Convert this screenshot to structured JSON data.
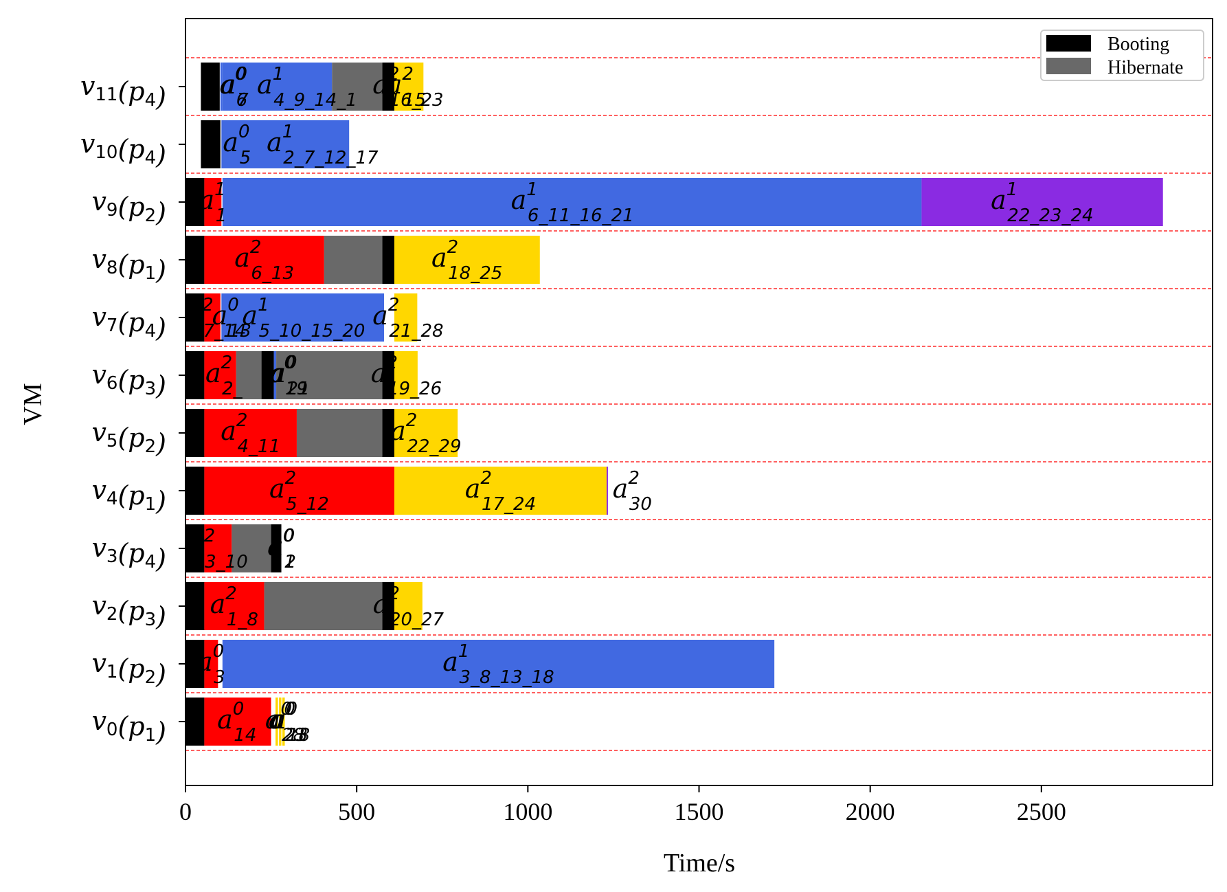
{
  "chart_data": {
    "type": "gantt",
    "xlabel": "Time/s",
    "ylabel": "VM",
    "xlim": [
      0,
      3000
    ],
    "xticks": [
      0,
      500,
      1000,
      1500,
      2000,
      2500
    ],
    "legend": {
      "placement": "top-right",
      "entries": [
        {
          "label": "Booting",
          "color": "#000000"
        },
        {
          "label": "Hibernate",
          "color": "#696969"
        }
      ]
    },
    "colors": {
      "booting": "#000000",
      "hibernate": "#696969",
      "red": "#ff0000",
      "blue": "#4169e1",
      "yellow": "#ffd700",
      "purple": "#8a2be2",
      "separator": "#ff0000"
    },
    "vms": [
      {
        "name": "v",
        "sub": "0",
        "p": "p",
        "psub": "1",
        "segments": [
          {
            "start": 0,
            "end": 55,
            "kind": "booting"
          },
          {
            "start": 55,
            "end": 250,
            "kind": "red"
          },
          {
            "start": 263,
            "end": 270,
            "kind": "yellow"
          },
          {
            "start": 273,
            "end": 280,
            "kind": "yellow"
          },
          {
            "start": 283,
            "end": 290,
            "kind": "yellow"
          }
        ],
        "labels": [
          {
            "x": 150,
            "sup": "0",
            "sub": "14"
          },
          {
            "x": 290,
            "sup": "0",
            "sub": "28"
          },
          {
            "x": 300,
            "sup": "0",
            "sub": "23"
          },
          {
            "x": 306,
            "sup": "0",
            "sub": "18"
          }
        ]
      },
      {
        "name": "v",
        "sub": "1",
        "p": "p",
        "psub": "2",
        "segments": [
          {
            "start": 0,
            "end": 55,
            "kind": "booting"
          },
          {
            "start": 55,
            "end": 95,
            "kind": "red"
          },
          {
            "start": 108,
            "end": 1720,
            "kind": "blue"
          }
        ],
        "labels": [
          {
            "x": 75,
            "sup": "0",
            "sub": "3"
          },
          {
            "x": 914,
            "sup": "1",
            "sub": "3_8_13_18"
          }
        ]
      },
      {
        "name": "v",
        "sub": "2",
        "p": "p",
        "psub": "3",
        "segments": [
          {
            "start": 0,
            "end": 55,
            "kind": "booting"
          },
          {
            "start": 55,
            "end": 230,
            "kind": "red"
          },
          {
            "start": 230,
            "end": 575,
            "kind": "hibernate"
          },
          {
            "start": 575,
            "end": 610,
            "kind": "booting"
          },
          {
            "start": 610,
            "end": 692,
            "kind": "yellow"
          }
        ],
        "labels": [
          {
            "x": 142,
            "sup": "2",
            "sub": "1_8"
          },
          {
            "x": 651,
            "sup": "2",
            "sub": "20_27"
          }
        ]
      },
      {
        "name": "v",
        "sub": "3",
        "p": "p",
        "psub": "4",
        "segments": [
          {
            "start": 0,
            "end": 55,
            "kind": "booting"
          },
          {
            "start": 55,
            "end": 135,
            "kind": "red"
          },
          {
            "start": 135,
            "end": 250,
            "kind": "hibernate"
          },
          {
            "start": 250,
            "end": 280,
            "kind": "booting"
          }
        ],
        "labels": [
          {
            "x": 95,
            "sup": "2",
            "sub": "3_10"
          },
          {
            "x": 280,
            "sup": "0",
            "sub": "1"
          },
          {
            "x": 282,
            "sup": "0",
            "sub": "2"
          }
        ]
      },
      {
        "name": "v",
        "sub": "4",
        "p": "p",
        "psub": "1",
        "segments": [
          {
            "start": 0,
            "end": 55,
            "kind": "booting"
          },
          {
            "start": 55,
            "end": 610,
            "kind": "red"
          },
          {
            "start": 610,
            "end": 1230,
            "kind": "yellow"
          },
          {
            "start": 1230,
            "end": 1234,
            "kind": "purple"
          }
        ],
        "labels": [
          {
            "x": 332,
            "sup": "2",
            "sub": "5_12"
          },
          {
            "x": 920,
            "sup": "2",
            "sub": "17_24"
          },
          {
            "x": 1305,
            "sup": "2",
            "sub": "30"
          }
        ]
      },
      {
        "name": "v",
        "sub": "5",
        "p": "p",
        "psub": "2",
        "segments": [
          {
            "start": 0,
            "end": 55,
            "kind": "booting"
          },
          {
            "start": 55,
            "end": 325,
            "kind": "red"
          },
          {
            "start": 325,
            "end": 575,
            "kind": "hibernate"
          },
          {
            "start": 575,
            "end": 610,
            "kind": "booting"
          },
          {
            "start": 610,
            "end": 795,
            "kind": "yellow"
          }
        ],
        "labels": [
          {
            "x": 190,
            "sup": "2",
            "sub": "4_11"
          },
          {
            "x": 702,
            "sup": "2",
            "sub": "22_29"
          }
        ]
      },
      {
        "name": "v",
        "sub": "6",
        "p": "p",
        "psub": "3",
        "segments": [
          {
            "start": 0,
            "end": 55,
            "kind": "booting"
          },
          {
            "start": 55,
            "end": 148,
            "kind": "red"
          },
          {
            "start": 148,
            "end": 222,
            "kind": "hibernate"
          },
          {
            "start": 222,
            "end": 258,
            "kind": "booting"
          },
          {
            "start": 258,
            "end": 265,
            "kind": "blue"
          },
          {
            "start": 265,
            "end": 575,
            "kind": "hibernate"
          },
          {
            "start": 575,
            "end": 610,
            "kind": "booting"
          },
          {
            "start": 610,
            "end": 678,
            "kind": "yellow"
          }
        ],
        "labels": [
          {
            "x": 112,
            "sup": "2",
            "sub": "2_"
          },
          {
            "x": 300,
            "sup": "0",
            "sub": "19"
          },
          {
            "x": 305,
            "sup": "0",
            "sub": "21"
          },
          {
            "x": 645,
            "sup": "2",
            "sub": "19_26"
          }
        ]
      },
      {
        "name": "v",
        "sub": "7",
        "p": "p",
        "psub": "4",
        "segments": [
          {
            "start": 0,
            "end": 55,
            "kind": "booting"
          },
          {
            "start": 55,
            "end": 102,
            "kind": "red"
          },
          {
            "start": 105,
            "end": 580,
            "kind": "blue"
          },
          {
            "start": 610,
            "end": 677,
            "kind": "yellow"
          }
        ],
        "labels": [
          {
            "x": 90,
            "sup": "2",
            "sub": "7_14"
          },
          {
            "x": 135,
            "sup": "0",
            "sub": "13"
          },
          {
            "x": 345,
            "sup": "1",
            "sub": "5_10_15_20"
          },
          {
            "x": 650,
            "sup": "2",
            "sub": "21_28"
          }
        ]
      },
      {
        "name": "v",
        "sub": "8",
        "p": "p",
        "psub": "1",
        "segments": [
          {
            "start": 0,
            "end": 55,
            "kind": "booting"
          },
          {
            "start": 55,
            "end": 405,
            "kind": "red"
          },
          {
            "start": 405,
            "end": 575,
            "kind": "hibernate"
          },
          {
            "start": 575,
            "end": 610,
            "kind": "booting"
          },
          {
            "start": 610,
            "end": 1035,
            "kind": "yellow"
          }
        ],
        "labels": [
          {
            "x": 230,
            "sup": "2",
            "sub": "6_13"
          },
          {
            "x": 822,
            "sup": "2",
            "sub": "18_25"
          }
        ]
      },
      {
        "name": "v",
        "sub": "9",
        "p": "p",
        "psub": "2",
        "segments": [
          {
            "start": 0,
            "end": 55,
            "kind": "booting"
          },
          {
            "start": 55,
            "end": 105,
            "kind": "red"
          },
          {
            "start": 108,
            "end": 2150,
            "kind": "blue"
          },
          {
            "start": 2150,
            "end": 2855,
            "kind": "purple"
          }
        ],
        "labels": [
          {
            "x": 80,
            "sup": "1",
            "sub": "1"
          },
          {
            "x": 1130,
            "sup": "1",
            "sub": "6_11_16_21"
          },
          {
            "x": 2502,
            "sup": "1",
            "sub": "22_23_24"
          }
        ]
      },
      {
        "name": "v",
        "sub": "10",
        "p": "p",
        "psub": "4",
        "segments": [
          {
            "start": 45,
            "end": 102,
            "kind": "booting"
          },
          {
            "start": 105,
            "end": 478,
            "kind": "blue"
          }
        ],
        "labels": [
          {
            "x": 150,
            "sup": "0",
            "sub": "5"
          },
          {
            "x": 400,
            "sup": "1",
            "sub": "2_7_12_17"
          }
        ]
      },
      {
        "name": "v",
        "sub": "11",
        "p": "p",
        "psub": "4",
        "segments": [
          {
            "start": 45,
            "end": 100,
            "kind": "booting"
          },
          {
            "start": 102,
            "end": 107,
            "kind": "blue"
          },
          {
            "start": 107,
            "end": 428,
            "kind": "blue"
          },
          {
            "start": 428,
            "end": 575,
            "kind": "hibernate"
          },
          {
            "start": 575,
            "end": 610,
            "kind": "booting"
          },
          {
            "start": 610,
            "end": 695,
            "kind": "yellow"
          }
        ],
        "labels": [
          {
            "x": 140,
            "sup": "0",
            "sub": "6"
          },
          {
            "x": 143,
            "sup": "0",
            "sub": "7"
          },
          {
            "x": 355,
            "sup": "1",
            "sub": "4_9_14_1"
          },
          {
            "x": 645,
            "sup": "2",
            "sub": "15"
          },
          {
            "x": 650,
            "sup": "2",
            "sub": "16_23"
          }
        ]
      }
    ]
  }
}
